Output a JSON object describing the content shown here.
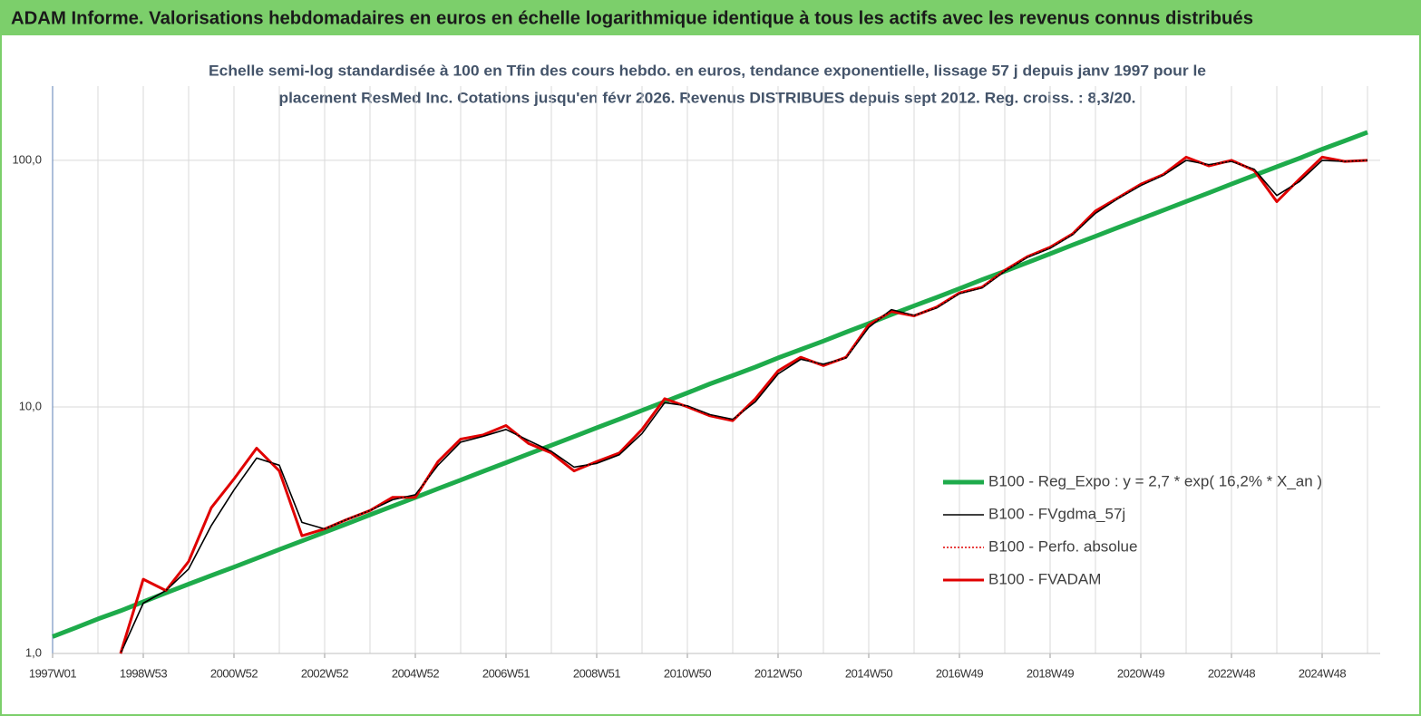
{
  "chart_data": {
    "type": "line",
    "title": "ADAM Informe. Valorisations hebdomadaires en euros en échelle logarithmique identique à tous les actifs avec les revenus connus distribués",
    "subtitle": [
      "Echelle semi-log standardisée à 100 en Tfin des cours hebdo. en euros, tendance exponentielle, lissage 57 j depuis janv 1997 pour le",
      "placement ResMed Inc. Cotations jusqu'en févr 2026. Revenus DISTRIBUES depuis sept 2012. Reg. croiss. : 8,3/20."
    ],
    "categories": [
      "1997W01",
      null,
      null,
      null,
      "1998W53",
      null,
      null,
      null,
      "2000W52",
      null,
      null,
      null,
      "2002W52",
      null,
      null,
      null,
      "2004W52",
      null,
      null,
      null,
      "2006W51",
      null,
      null,
      null,
      "2008W51",
      null,
      null,
      null,
      "2010W50",
      null,
      null,
      null,
      "2012W50",
      null,
      null,
      null,
      "2014W50",
      null,
      null,
      null,
      "2016W49",
      null,
      null,
      null,
      "2018W49",
      null,
      null,
      null,
      "2020W49",
      null,
      null,
      null,
      "2022W48",
      null,
      null,
      null,
      "2024W48",
      null,
      null
    ],
    "log_scale": true,
    "ylim": [
      1,
      200
    ],
    "yticks": [
      {
        "value": 1,
        "label": "1,0"
      },
      {
        "value": 10,
        "label": "10,0"
      },
      {
        "value": 100,
        "label": "100,0"
      }
    ],
    "grid": true,
    "legend": "right",
    "series": [
      {
        "name": "B100 - Reg_Expo : y = 2,7 * exp( 16,2% *  X_an )",
        "color": "#1eab4b",
        "dash": "solid",
        "values": [
          1.17,
          1.27,
          1.38,
          1.49,
          1.62,
          1.76,
          1.91,
          2.07,
          2.24,
          2.43,
          2.64,
          2.86,
          3.1,
          3.36,
          3.65,
          3.96,
          4.29,
          4.66,
          5.05,
          5.48,
          5.94,
          6.45,
          6.99,
          7.58,
          8.23,
          8.92,
          9.68,
          10.5,
          11.4,
          12.4,
          13.4,
          14.5,
          15.8,
          17.1,
          18.5,
          20.1,
          21.8,
          23.7,
          25.7,
          27.8,
          30.2,
          32.8,
          35.5,
          38.5,
          41.8,
          45.4,
          49.2,
          53.4,
          57.9,
          62.8,
          68.1,
          73.8,
          80.1,
          86.9,
          94.2,
          102,
          111,
          120,
          130
        ]
      },
      {
        "name": "B100 - FVgdma_57j",
        "color": "#000000",
        "dash": "solid",
        "values": [
          null,
          null,
          null,
          1.0,
          1.6,
          1.8,
          2.2,
          3.3,
          4.6,
          6.2,
          5.8,
          3.4,
          3.2,
          3.5,
          3.8,
          4.2,
          4.4,
          5.8,
          7.2,
          7.6,
          8.1,
          7.3,
          6.6,
          5.7,
          5.9,
          6.4,
          7.8,
          10.4,
          10.1,
          9.3,
          8.9,
          10.5,
          13.6,
          15.6,
          14.9,
          15.8,
          21,
          24.8,
          23.5,
          25.2,
          28.8,
          30.4,
          35.5,
          40.4,
          44,
          50,
          61,
          70,
          79,
          87,
          100,
          96,
          99,
          92,
          72,
          82,
          100,
          99,
          100
        ]
      },
      {
        "name": "B100 - Perfo. absolue",
        "color": "#e00000",
        "dash": "dotted",
        "values": [
          null,
          null,
          null,
          1.0,
          2.0,
          1.8,
          2.36,
          3.9,
          5.1,
          6.8,
          5.5,
          3.0,
          3.2,
          3.5,
          3.8,
          4.3,
          4.3,
          6.0,
          7.4,
          7.7,
          8.4,
          7.1,
          6.5,
          5.5,
          6.0,
          6.5,
          8.1,
          10.8,
          10,
          9.2,
          8.8,
          10.8,
          14,
          15.9,
          14.7,
          15.9,
          21.5,
          24.4,
          23.4,
          25.4,
          29,
          30.6,
          35.8,
          40.7,
          44.4,
          50.4,
          62.3,
          70.5,
          80,
          87.6,
          103,
          95,
          100,
          91,
          68,
          84,
          103,
          99,
          100
        ]
      },
      {
        "name": "B100 - FVADAM",
        "color": "#e00000",
        "dash": "solid",
        "values": [
          null,
          null,
          null,
          1.0,
          2.0,
          1.8,
          2.36,
          3.9,
          5.1,
          6.8,
          5.5,
          3.0,
          3.2,
          3.5,
          3.8,
          4.3,
          4.3,
          6.0,
          7.4,
          7.7,
          8.4,
          7.1,
          6.5,
          5.5,
          6.0,
          6.5,
          8.1,
          10.8,
          10,
          9.2,
          8.8,
          10.8,
          14,
          15.9,
          14.7,
          15.9,
          21.5,
          24.4,
          23.4,
          25.4,
          29,
          30.6,
          35.8,
          40.7,
          44.4,
          50.4,
          62.3,
          70.5,
          80,
          87.6,
          103,
          95,
          100,
          91,
          68,
          84,
          103,
          99,
          100
        ]
      }
    ]
  }
}
